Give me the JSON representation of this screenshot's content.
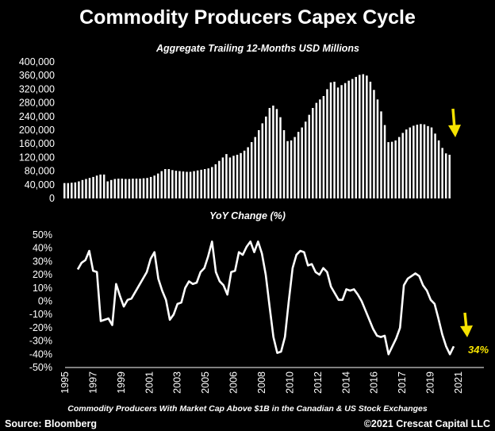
{
  "colors": {
    "background": "#000000",
    "foreground": "#ffffff",
    "arrow": "#f5e200"
  },
  "title": "Commodity Producers Capex Cycle",
  "footer": {
    "source": "Source: Bloomberg",
    "copyright": "©2021 Crescat Capital LLC",
    "note": "Commodity Producers With Market Cap Above $1B in the Canadian & US Stock Exchanges"
  },
  "chart_data": [
    {
      "type": "bar",
      "subtitle": "Aggregate Trailing 12-Months USD Millions",
      "ylim": [
        0,
        400000
      ],
      "yticks": [
        "0",
        "40,000",
        "80,000",
        "120,000",
        "160,000",
        "200,000",
        "240,000",
        "280,000",
        "320,000",
        "360,000",
        "400,000"
      ],
      "values": [
        45000,
        45000,
        46000,
        47000,
        50000,
        54000,
        57000,
        60000,
        63000,
        67000,
        70000,
        70000,
        50000,
        54000,
        57000,
        58000,
        58000,
        57000,
        57000,
        58000,
        58000,
        58000,
        59000,
        60000,
        63000,
        67000,
        73000,
        80000,
        86000,
        86000,
        83000,
        81000,
        80000,
        79000,
        78000,
        78000,
        80000,
        82000,
        84000,
        86000,
        88000,
        92000,
        100000,
        110000,
        120000,
        130000,
        120000,
        125000,
        128000,
        133000,
        140000,
        150000,
        165000,
        180000,
        200000,
        220000,
        240000,
        265000,
        272000,
        262000,
        238000,
        200000,
        168000,
        170000,
        180000,
        195000,
        208000,
        225000,
        245000,
        265000,
        280000,
        290000,
        300000,
        320000,
        340000,
        342000,
        325000,
        332000,
        338000,
        345000,
        350000,
        356000,
        362000,
        364000,
        360000,
        342000,
        318000,
        290000,
        255000,
        215000,
        165000,
        166000,
        170000,
        180000,
        192000,
        202000,
        208000,
        213000,
        216000,
        218000,
        217000,
        212000,
        208000,
        190000,
        170000,
        148000,
        132000,
        128000
      ],
      "annotation": "down-arrow"
    },
    {
      "type": "line",
      "subtitle": "YoY Change (%)",
      "ylim": [
        -50,
        50
      ],
      "yticks": [
        "50%",
        "40%",
        "30%",
        "20%",
        "10%",
        "0%",
        "-10%",
        "-20%",
        "-30%",
        "-40%",
        "-50%"
      ],
      "xticks": [
        "1995",
        "1997",
        "1999",
        "2001",
        "2003",
        "2005",
        "2006",
        "2008",
        "2010",
        "2012",
        "2014",
        "2016",
        "2017",
        "2019",
        "2021"
      ],
      "values": [
        24,
        29,
        31,
        38,
        23,
        22,
        -15,
        -14,
        -13,
        -18,
        13,
        4,
        -4,
        1,
        2,
        7,
        12,
        17,
        22,
        32,
        37,
        17,
        8,
        1,
        -14,
        -10,
        -2,
        -1,
        10,
        15,
        13,
        14,
        22,
        25,
        34,
        45,
        22,
        15,
        12,
        5,
        22,
        23,
        37,
        35,
        41,
        45,
        37,
        45,
        36,
        20,
        -4,
        -27,
        -39,
        -38,
        -27,
        0,
        25,
        35,
        38,
        37,
        27,
        28,
        22,
        20,
        25,
        22,
        11,
        6,
        1,
        1,
        9,
        8,
        9,
        5,
        0,
        -7,
        -14,
        -21,
        -26,
        -27,
        -26,
        -40,
        -34,
        -28,
        -20,
        12,
        17,
        19,
        21,
        19,
        12,
        8,
        1,
        -2,
        -13,
        -25,
        -34,
        -40,
        -34
      ],
      "annotation": "34%"
    }
  ]
}
